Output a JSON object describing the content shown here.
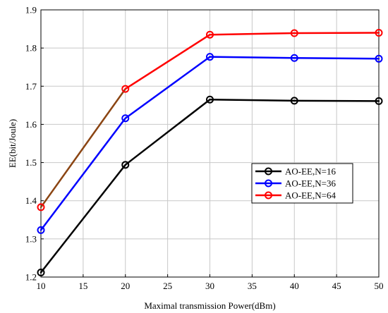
{
  "chart_data": {
    "type": "line",
    "title": "",
    "xlabel": "Maximal transmission Power(dBm)",
    "ylabel": "EE(bit/Joule)",
    "xlim": [
      10,
      50
    ],
    "ylim": [
      1.2,
      1.9
    ],
    "xticks": [
      10,
      15,
      20,
      25,
      30,
      35,
      40,
      45,
      50
    ],
    "yticks": [
      1.2,
      1.3,
      1.4,
      1.5,
      1.6,
      1.7,
      1.8,
      1.9
    ],
    "grid": true,
    "legend_position": "center-right",
    "x": [
      10,
      20,
      30,
      40,
      50
    ],
    "series": [
      {
        "name": "AO-EE,N=16",
        "color": "#000000",
        "marker": "circle",
        "values": [
          1.212,
          1.494,
          1.665,
          1.662,
          1.661
        ]
      },
      {
        "name": "AO-EE,N=36",
        "color": "#0000ff",
        "marker": "circle",
        "values": [
          1.323,
          1.616,
          1.777,
          1.774,
          1.772
        ]
      },
      {
        "name": "AO-EE,N=64",
        "color": "#ff0000",
        "marker": "circle",
        "values": [
          1.383,
          1.693,
          1.835,
          1.839,
          1.84
        ],
        "segment_colors": [
          "#8b4513",
          "#ff0000",
          "#ff0000",
          "#ff0000"
        ]
      }
    ]
  }
}
